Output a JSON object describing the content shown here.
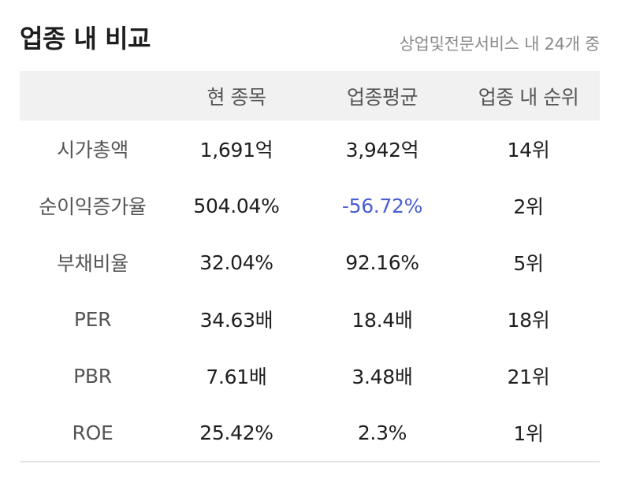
{
  "header": {
    "title": "업종 내 비교",
    "context": "상업및전문서비스 내 24개 중"
  },
  "table": {
    "columns": [
      "",
      "현 종목",
      "업종평균",
      "업종 내 순위"
    ],
    "rows": [
      {
        "label": "시가총액",
        "own": "1,691억",
        "avg": "3,942억",
        "rank": "14위",
        "avg_negative": false
      },
      {
        "label": "순이익증가율",
        "own": "504.04%",
        "avg": "-56.72%",
        "rank": "2위",
        "avg_negative": true
      },
      {
        "label": "부채비율",
        "own": "32.04%",
        "avg": "92.16%",
        "rank": "5위",
        "avg_negative": false
      },
      {
        "label": "PER",
        "own": "34.63배",
        "avg": "18.4배",
        "rank": "18위",
        "avg_negative": false
      },
      {
        "label": "PBR",
        "own": "7.61배",
        "avg": "3.48배",
        "rank": "21위",
        "avg_negative": false
      },
      {
        "label": "ROE",
        "own": "25.42%",
        "avg": "2.3%",
        "rank": "1위",
        "avg_negative": false
      }
    ]
  },
  "colors": {
    "negative": "#4a5fd0",
    "header_bg": "#f1f1f1"
  }
}
